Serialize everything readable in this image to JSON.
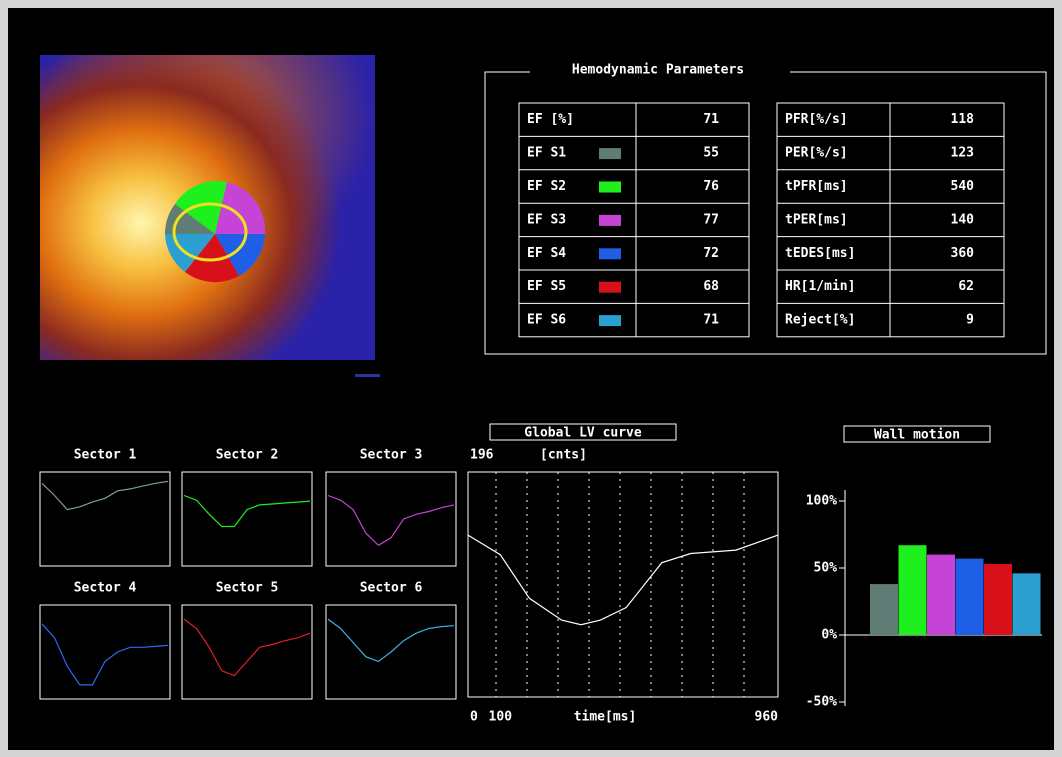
{
  "hemodynamic": {
    "title": "Hemodynamic Parameters",
    "ef_table": [
      {
        "label": "EF [%]",
        "value": 71
      },
      {
        "label": "EF S1",
        "value": 55,
        "color": "#5f7d74"
      },
      {
        "label": "EF S2",
        "value": 76,
        "color": "#1ef01e"
      },
      {
        "label": "EF S3",
        "value": 77,
        "color": "#c544d6"
      },
      {
        "label": "EF S4",
        "value": 72,
        "color": "#1f5fe6"
      },
      {
        "label": "EF S5",
        "value": 68,
        "color": "#d8101a"
      },
      {
        "label": "EF S6",
        "value": 71,
        "color": "#2a9fd0"
      }
    ],
    "time_table": [
      {
        "label": "PFR[%/s]",
        "value": 118
      },
      {
        "label": "PER[%/s]",
        "value": 123
      },
      {
        "label": "tPFR[ms]",
        "value": 540
      },
      {
        "label": "tPER[ms]",
        "value": 140
      },
      {
        "label": "tEDES[ms]",
        "value": 360
      },
      {
        "label": "HR[1/min]",
        "value": 62
      },
      {
        "label": "Reject[%]",
        "value": 9
      }
    ]
  },
  "sector_curves": [
    {
      "title": "Sector 1",
      "color": "#7fa096",
      "values": [
        88,
        75,
        60,
        63,
        68,
        72,
        80,
        82,
        85,
        88,
        90
      ]
    },
    {
      "title": "Sector 2",
      "color": "#1ef01e",
      "values": [
        75,
        70,
        55,
        42,
        42,
        60,
        65,
        66,
        67,
        68,
        69
      ]
    },
    {
      "title": "Sector 3",
      "color": "#c544d6",
      "values": [
        75,
        70,
        60,
        35,
        22,
        30,
        50,
        55,
        58,
        62,
        65
      ]
    },
    {
      "title": "Sector 4",
      "color": "#2a6cf0",
      "values": [
        80,
        65,
        35,
        15,
        15,
        40,
        50,
        55,
        55,
        56,
        57
      ]
    },
    {
      "title": "Sector 5",
      "color": "#e0202a",
      "values": [
        85,
        75,
        55,
        30,
        25,
        40,
        55,
        58,
        62,
        65,
        70
      ]
    },
    {
      "title": "Sector 6",
      "color": "#3ab0e0",
      "values": [
        85,
        75,
        60,
        45,
        40,
        50,
        62,
        70,
        75,
        77,
        78
      ]
    }
  ],
  "global_curve": {
    "title": "Global LV curve",
    "y_unit": "[cnts]",
    "x_label": "time[ms]",
    "ylim": [
      0,
      196
    ],
    "xlim": [
      0,
      960
    ],
    "xticks": [
      0,
      100,
      960
    ],
    "x": [
      0,
      100,
      190,
      290,
      350,
      410,
      490,
      600,
      690,
      830,
      960
    ],
    "values": [
      141,
      124,
      86,
      67,
      63,
      67,
      78,
      117,
      125,
      128,
      141
    ]
  },
  "wall_motion": {
    "title": "Wall motion",
    "ylim": [
      -50,
      100
    ],
    "yticks": [
      {
        "value": 100,
        "label": "100%"
      },
      {
        "value": 50,
        "label": "50%"
      },
      {
        "value": 0,
        "label": "0%"
      },
      {
        "value": -50,
        "label": "-50%"
      }
    ],
    "values": [
      38,
      67,
      60,
      57,
      53,
      46
    ],
    "colors": [
      "#5f7d74",
      "#1ef01e",
      "#c544d6",
      "#1f5fe6",
      "#d8101a",
      "#2a9fd0"
    ]
  }
}
